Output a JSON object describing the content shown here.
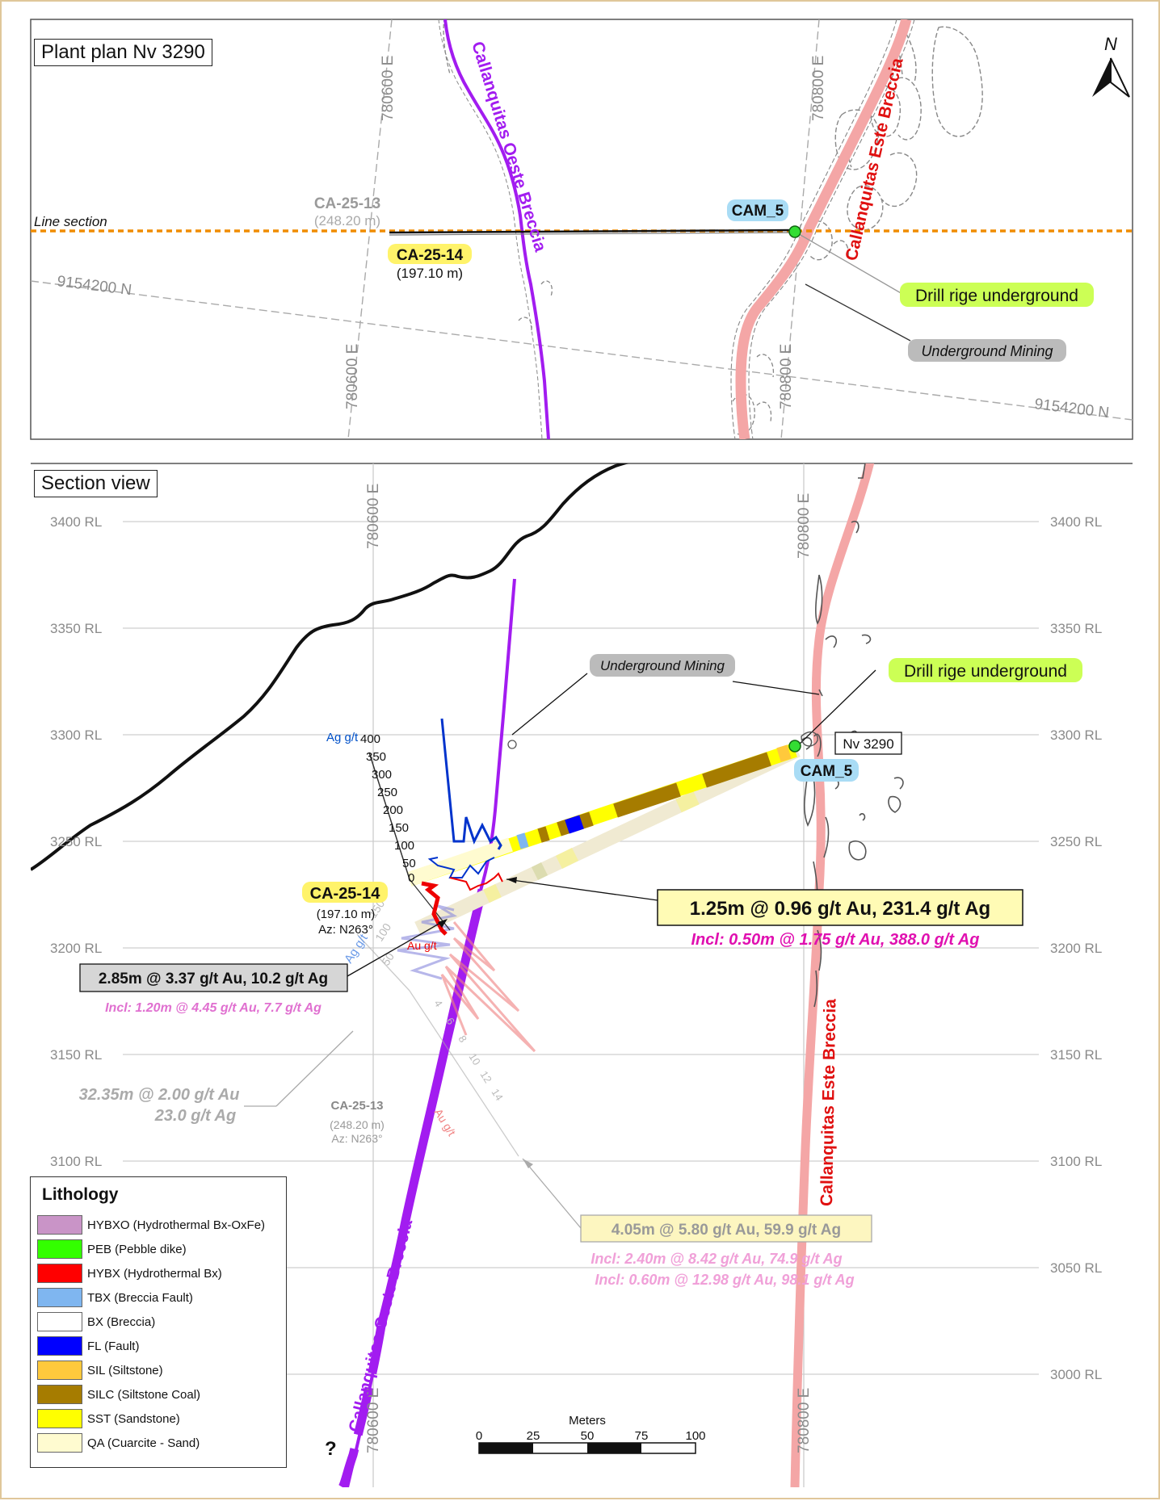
{
  "plan": {
    "title": "Plant plan Nv 3290",
    "north": "N",
    "line_section": "Line section",
    "grid": {
      "e600_top": "780600 E",
      "e600_bottom": "780600 E",
      "e800_top": "780800 E",
      "e800_bottom": "780800 E",
      "n_left": "9154200 N",
      "n_right": "9154200 N"
    },
    "oeste_label": "Callanquitas Oeste Breccia",
    "este_label": "Callanquitas Este Breccia",
    "ca13_name": "CA-25-13",
    "ca13_len": "(248.20 m)",
    "ca14_name": "CA-25-14",
    "ca14_len": "(197.10 m)",
    "cam5": "CAM_5",
    "drill": "Drill rige underground",
    "mining": "Underground Mining"
  },
  "section": {
    "title": "Section view",
    "e600": "780600 E",
    "e800": "780800 E",
    "e600_bottom": "780600 E",
    "e800_bottom": "780800 E",
    "rl_left": [
      "3400 RL",
      "3350 RL",
      "3300 RL",
      "3250 RL",
      "3200 RL",
      "3150 RL",
      "3100 RL"
    ],
    "rl_right": [
      "3400 RL",
      "3350 RL",
      "3300 RL",
      "3250 RL",
      "3200 RL",
      "3150 RL",
      "3100 RL",
      "3050 RL",
      "3000 RL"
    ],
    "mining": "Underground Mining",
    "drill": "Drill rige underground",
    "nv": "Nv 3290",
    "cam5": "CAM_5",
    "ag_axis_title": "Ag g/t",
    "ag_ticks": [
      "400",
      "350",
      "300",
      "250",
      "200",
      "150",
      "100",
      "50",
      "0"
    ],
    "au_axis_title": "Au g/t",
    "ca14_name": "CA-25-14",
    "ca14_len": "(197.10 m)",
    "ca14_az": "Az: N263°",
    "int1_main": "1.25m @ 0.96 g/t Au, 231.4 g/t Ag",
    "int1_incl": "Incl: 0.50m @ 1.75 g/t Au, 388.0 g/t Ag",
    "int2_main": "2.85m @ 3.37 g/t Au, 10.2 g/t Ag",
    "int2_incl": "Incl: 1.20m @ 4.45 g/t Au, 7.7 g/t Ag",
    "int3_line1": "32.35m @ 2.00 g/t Au",
    "int3_line2": "23.0 g/t Ag",
    "ca13_name": "CA-25-13",
    "ca13_len": "(248.20 m)",
    "ca13_az": "Az: N263°",
    "ca13_ag_title": "Ag g/t",
    "ca13_ag_ticks": [
      "150",
      "100",
      "50"
    ],
    "ca13_au_title": "Au g/t",
    "ca13_au_ticks": [
      "4",
      "6",
      "8",
      "10",
      "12",
      "14"
    ],
    "int4_main": "4.05m @ 5.80 g/t Au, 59.9 g/t Ag",
    "int4_incl1": "Incl: 2.40m @ 8.42 g/t Au, 74.9 g/t Ag",
    "int4_incl2": "Incl: 0.60m @ 12.98 g/t Au, 98.1 g/t Ag",
    "oeste_label": "Callanquitas Oeste Breccia",
    "este_label": "Callanquitas Este Breccia",
    "question": "?"
  },
  "scale": {
    "title": "Meters",
    "ticks": [
      "0",
      "25",
      "50",
      "75",
      "100"
    ]
  },
  "legend": {
    "title": "Lithology",
    "items": [
      {
        "label": "HYBXO (Hydrothermal Bx-OxFe)",
        "color": "#c994c7"
      },
      {
        "label": "PEB (Pebble dike)",
        "color": "#33ff00"
      },
      {
        "label": "HYBX (Hydrothermal Bx)",
        "color": "#ff0000"
      },
      {
        "label": "TBX (Breccia Fault)",
        "color": "#7fb6f0"
      },
      {
        "label": "BX (Breccia)",
        "color": "#ffffff"
      },
      {
        "label": "FL (Fault)",
        "color": "#0000ff"
      },
      {
        "label": "SIL (Siltstone)",
        "color": "#ffc93c"
      },
      {
        "label": "SILC (Siltstone Coal)",
        "color": "#a67c00"
      },
      {
        "label": "SST (Sandstone)",
        "color": "#ffff00"
      },
      {
        "label": "QA (Cuarcite - Sand)",
        "color": "#fffbd0"
      }
    ]
  },
  "colors": {
    "oeste": "#a21cf0",
    "este": "#f4a6a6",
    "line_section": "#f08c00",
    "highlight_yellow": "#fff36a",
    "highlight_blue": "#a9dcf5",
    "highlight_green": "#ccff55",
    "ag_bars": "#0033cc",
    "au_bars": "#ee0000"
  }
}
